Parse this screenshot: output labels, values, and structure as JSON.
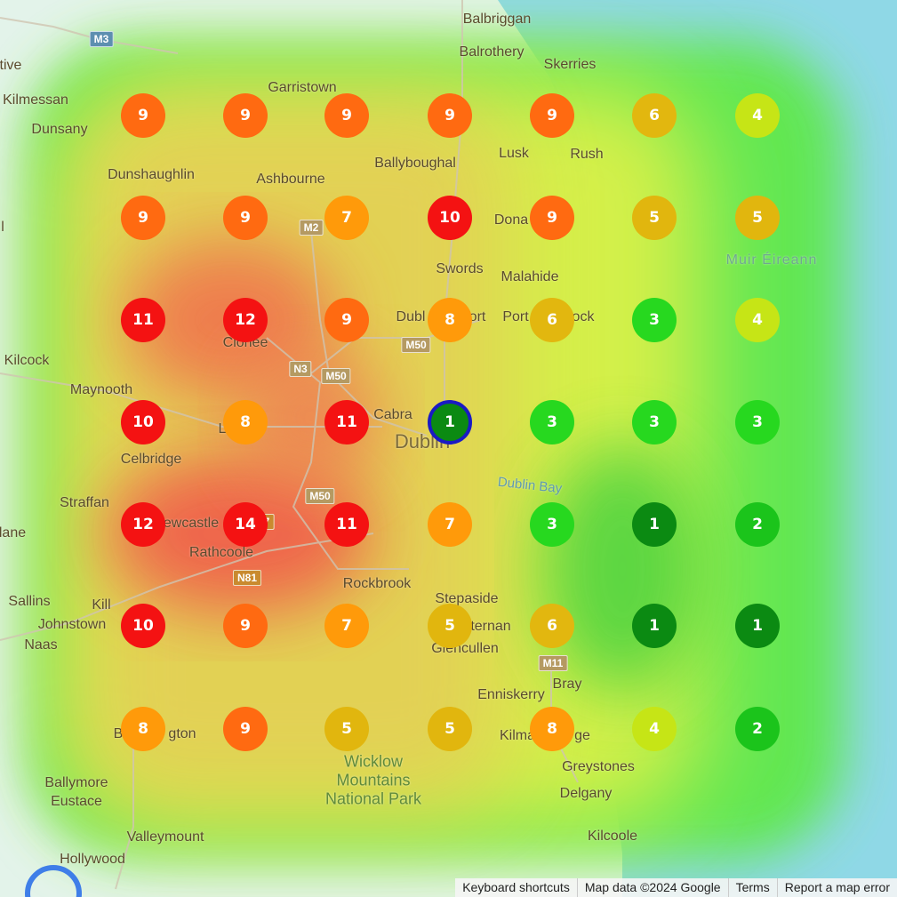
{
  "places": [
    {
      "name": "Balbriggan",
      "style": "normal"
    },
    {
      "name": "Balrothery",
      "style": "normal"
    },
    {
      "name": "Skerries",
      "style": "normal"
    },
    {
      "name": "tive",
      "style": "normal"
    },
    {
      "name": "Kilmessan",
      "style": "normal"
    },
    {
      "name": "Garristown",
      "style": "normal"
    },
    {
      "name": "Dunsany",
      "style": "normal"
    },
    {
      "name": "Lusk",
      "style": "normal"
    },
    {
      "name": "Rush",
      "style": "normal"
    },
    {
      "name": "Ballyboughal",
      "style": "normal"
    },
    {
      "name": "Dunshaughlin",
      "style": "normal"
    },
    {
      "name": "Ashbourne",
      "style": "normal"
    },
    {
      "name": "Dona",
      "style": "normal"
    },
    {
      "name": "Muir Éireann",
      "style": "water"
    },
    {
      "name": "Swords",
      "style": "normal"
    },
    {
      "name": "Malahide",
      "style": "normal"
    },
    {
      "name": "Dubl",
      "style": "normal"
    },
    {
      "name": "ort",
      "style": "normal"
    },
    {
      "name": "Port",
      "style": "normal"
    },
    {
      "name": "ock",
      "style": "normal"
    },
    {
      "name": "Clonee",
      "style": "normal"
    },
    {
      "name": "Kilcock",
      "style": "normal"
    },
    {
      "name": "Maynooth",
      "style": "normal"
    },
    {
      "name": "Cabra",
      "style": "normal"
    },
    {
      "name": "Dublin",
      "style": "big"
    },
    {
      "name": "L",
      "style": "normal"
    },
    {
      "name": "Celbridge",
      "style": "normal"
    },
    {
      "name": "Dublin Bay",
      "style": "bay"
    },
    {
      "name": "Straffan",
      "style": "normal"
    },
    {
      "name": "ewcastle",
      "style": "normal"
    },
    {
      "name": "lane",
      "style": "normal"
    },
    {
      "name": "Rathcoole",
      "style": "normal"
    },
    {
      "name": "Rockbrook",
      "style": "normal"
    },
    {
      "name": "Stepaside",
      "style": "normal"
    },
    {
      "name": "Sallins",
      "style": "normal"
    },
    {
      "name": "Kill",
      "style": "normal"
    },
    {
      "name": "Johnstown",
      "style": "normal"
    },
    {
      "name": "Naas",
      "style": "normal"
    },
    {
      "name": "ternan",
      "style": "normal"
    },
    {
      "name": "Glencullen",
      "style": "normal"
    },
    {
      "name": "Bray",
      "style": "normal"
    },
    {
      "name": "Enniskerry",
      "style": "normal"
    },
    {
      "name": "B",
      "style": "normal"
    },
    {
      "name": "gton",
      "style": "normal"
    },
    {
      "name": "Kilma",
      "style": "normal"
    },
    {
      "name": "ge",
      "style": "normal"
    },
    {
      "name": "Wicklow\nMountains\nNational Park",
      "style": "park"
    },
    {
      "name": "Greystones",
      "style": "normal"
    },
    {
      "name": "Delgany",
      "style": "normal"
    },
    {
      "name": "Ballymore\nEustace",
      "style": "normal"
    },
    {
      "name": "Valleymount",
      "style": "normal"
    },
    {
      "name": "Kilcoole",
      "style": "normal"
    },
    {
      "name": "Hollywood",
      "style": "normal"
    },
    {
      "name": "l",
      "style": "normal"
    }
  ],
  "road_shields": [
    {
      "label": "M3",
      "style": "m3"
    },
    {
      "label": "M2",
      "style": "normal"
    },
    {
      "label": "M50",
      "style": "normal"
    },
    {
      "label": "N3",
      "style": "normal"
    },
    {
      "label": "M50",
      "style": "normal"
    },
    {
      "label": "M50",
      "style": "normal"
    },
    {
      "label": "N81",
      "style": "n81"
    },
    {
      "label": "M11",
      "style": "normal"
    },
    {
      "label": "7",
      "style": "n81"
    }
  ],
  "grid_values": [
    [
      9,
      9,
      9,
      9,
      9,
      6,
      4
    ],
    [
      9,
      9,
      7,
      10,
      9,
      5,
      5
    ],
    [
      11,
      12,
      9,
      8,
      6,
      3,
      4
    ],
    [
      10,
      8,
      11,
      1,
      3,
      3,
      3
    ],
    [
      12,
      14,
      11,
      7,
      3,
      1,
      2
    ],
    [
      10,
      9,
      7,
      5,
      6,
      1,
      1
    ],
    [
      8,
      9,
      5,
      5,
      8,
      4,
      2
    ]
  ],
  "selected_marker": {
    "row": 3,
    "col": 3
  },
  "value_colors": {
    "1": "#0b8a12",
    "2": "#1bc41b",
    "3": "#27d81f",
    "4": "#c6e516",
    "5": "#e1b60e",
    "6": "#e2b70f",
    "7": "#ff9a0a",
    "8": "#ff9a0a",
    "9": "#ff6a11",
    "10": "#f41212",
    "11": "#f41212",
    "12": "#f41212",
    "14": "#f41212"
  },
  "attribution": {
    "keyboard": "Keyboard shortcuts",
    "mapdata": "Map data ©2024 Google",
    "terms": "Terms",
    "report": "Report a map error"
  }
}
